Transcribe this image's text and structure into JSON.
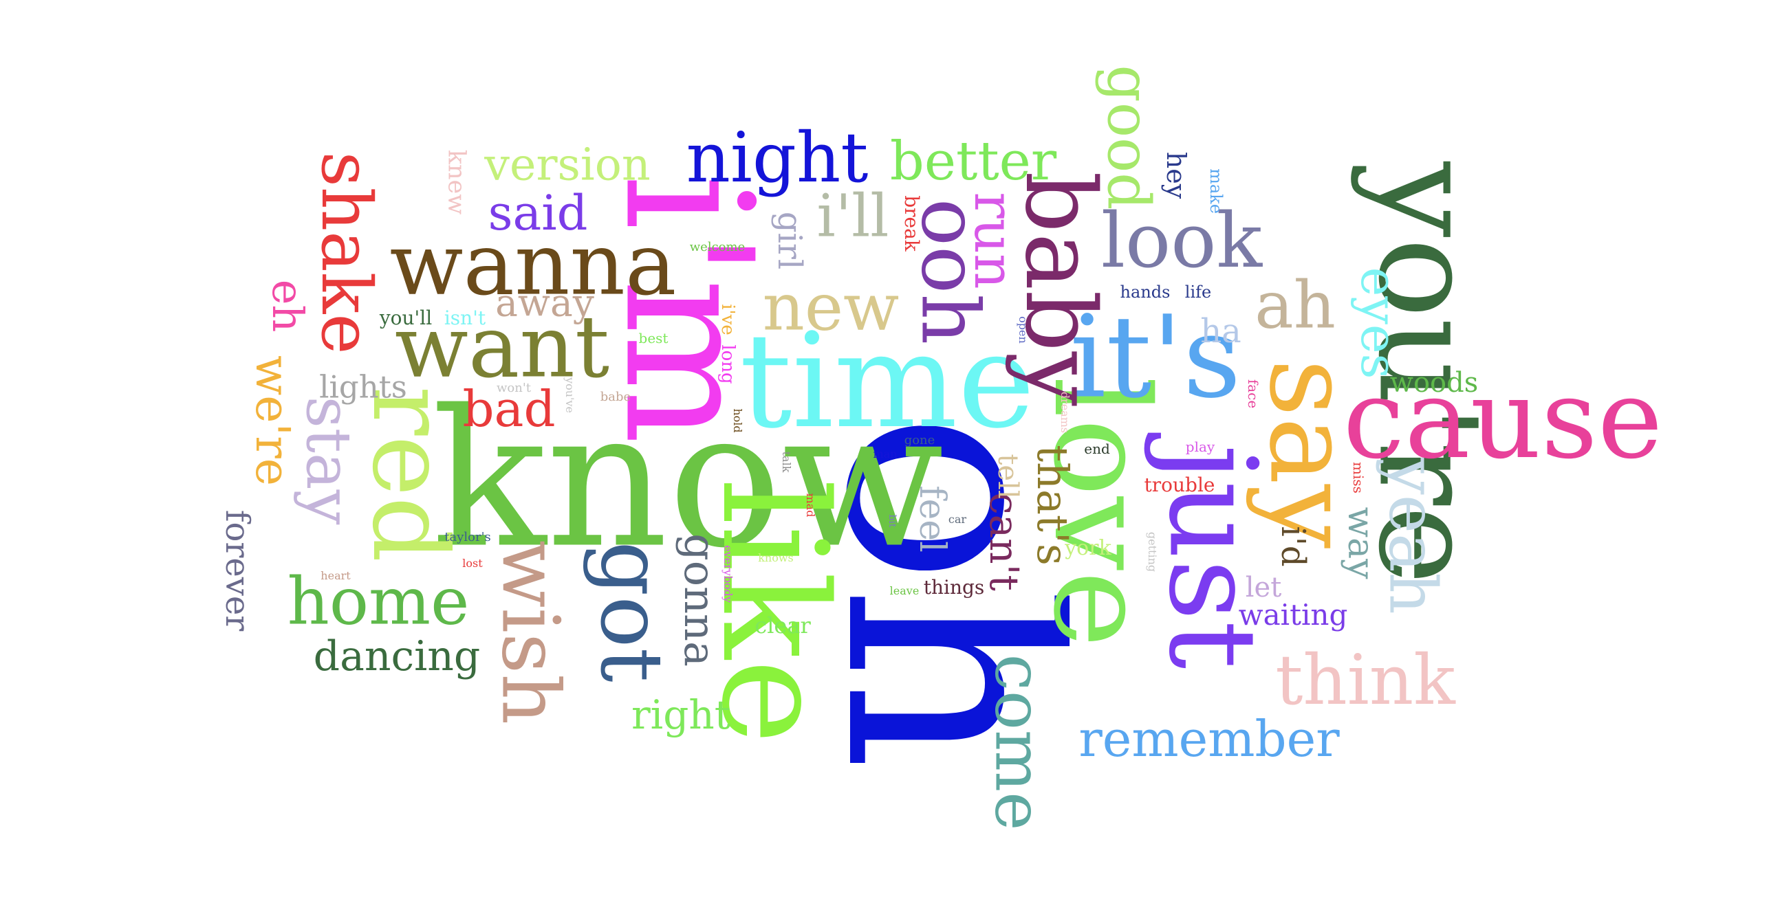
{
  "word_cloud": {
    "words": [
      {
        "text": "you're",
        "color": "#3A6B3E"
      },
      {
        "text": "oh",
        "color": "#0A14D8"
      },
      {
        "text": "know",
        "color": "#6BC444"
      },
      {
        "text": "i'm",
        "color": "#F23CF0"
      },
      {
        "text": "like",
        "color": "#8AF23C"
      },
      {
        "text": "love",
        "color": "#7FE85A"
      },
      {
        "text": "time",
        "color": "#6CF7F4"
      },
      {
        "text": "just",
        "color": "#7B3CF0"
      },
      {
        "text": "cause",
        "color": "#E8419A"
      },
      {
        "text": "say",
        "color": "#F2B23A"
      },
      {
        "text": "it's",
        "color": "#58A6F0"
      },
      {
        "text": "baby",
        "color": "#7B2A6A"
      },
      {
        "text": "red",
        "color": "#C4EE6A"
      },
      {
        "text": "want",
        "color": "#7B8033"
      },
      {
        "text": "wanna",
        "color": "#6A4A1A"
      },
      {
        "text": "got",
        "color": "#3A5E8C"
      },
      {
        "text": "wish",
        "color": "#C49A88"
      },
      {
        "text": "night",
        "color": "#1414D8"
      },
      {
        "text": "look",
        "color": "#7A7AA6"
      },
      {
        "text": "ooh",
        "color": "#7A3CA8"
      },
      {
        "text": "home",
        "color": "#5EB84A"
      },
      {
        "text": "come",
        "color": "#5EA8A0"
      },
      {
        "text": "think",
        "color": "#F2C4C4"
      },
      {
        "text": "yeah",
        "color": "#C4DAE8"
      },
      {
        "text": "new",
        "color": "#D8C88C"
      },
      {
        "text": "stay",
        "color": "#C4B4DA"
      },
      {
        "text": "shake",
        "color": "#E83A3A"
      },
      {
        "text": "good",
        "color": "#A6E86A"
      },
      {
        "text": "ah",
        "color": "#C4B49A"
      },
      {
        "text": "remember",
        "color": "#58A6F0"
      },
      {
        "text": "better",
        "color": "#7EE85A"
      },
      {
        "text": "eyes",
        "color": "#7EF4F4"
      },
      {
        "text": "i'll",
        "color": "#B4BCA6"
      },
      {
        "text": "version",
        "color": "#C4F07A"
      },
      {
        "text": "said",
        "color": "#7A3CE8"
      },
      {
        "text": "run",
        "color": "#D858E8"
      },
      {
        "text": "dancing",
        "color": "#3A6B3E"
      },
      {
        "text": "gonna",
        "color": "#5E6A7A"
      },
      {
        "text": "bad",
        "color": "#E83A3A"
      },
      {
        "text": "we're",
        "color": "#F2B23A"
      },
      {
        "text": "eh",
        "color": "#F24AA6"
      },
      {
        "text": "right",
        "color": "#7EE85A"
      },
      {
        "text": "away",
        "color": "#C4A694"
      },
      {
        "text": "that's",
        "color": "#8C7A2A"
      },
      {
        "text": "can't",
        "color": "#7A2A5E"
      },
      {
        "text": "forever",
        "color": "#6A6A8C"
      },
      {
        "text": "feel",
        "color": "#A6B4C4"
      },
      {
        "text": "lights",
        "color": "#A6A6A6"
      },
      {
        "text": "way",
        "color": "#7AA6A6"
      },
      {
        "text": "waiting",
        "color": "#7A3CE8"
      },
      {
        "text": "girl",
        "color": "#A6A6C4"
      },
      {
        "text": "woods",
        "color": "#5EB84A"
      },
      {
        "text": "i'd",
        "color": "#5E4A2A"
      },
      {
        "text": "ha",
        "color": "#B4C8E8"
      },
      {
        "text": "let",
        "color": "#C4A6DA"
      },
      {
        "text": "tell",
        "color": "#D8C49A"
      },
      {
        "text": "hey",
        "color": "#2A3A8C"
      },
      {
        "text": "knew",
        "color": "#F2C4C4"
      },
      {
        "text": "clear",
        "color": "#7EE85A"
      },
      {
        "text": "york",
        "color": "#C4F07A"
      },
      {
        "text": "things",
        "color": "#5E2A3A"
      },
      {
        "text": "trouble",
        "color": "#E83A3A"
      },
      {
        "text": "you'll",
        "color": "#3A6B3E"
      },
      {
        "text": "isn't",
        "color": "#7EF4F4"
      },
      {
        "text": "i've",
        "color": "#F2B23A"
      },
      {
        "text": "long",
        "color": "#F23CF0"
      },
      {
        "text": "break",
        "color": "#E83A3A"
      },
      {
        "text": "hands",
        "color": "#2A3A8C"
      },
      {
        "text": "life",
        "color": "#2A3A8C"
      },
      {
        "text": "make",
        "color": "#58A6F0"
      },
      {
        "text": "open",
        "color": "#5E6AC4"
      },
      {
        "text": "face",
        "color": "#E8419A"
      },
      {
        "text": "miss",
        "color": "#E83A3A"
      },
      {
        "text": "best",
        "color": "#7EE85A"
      },
      {
        "text": "welcome",
        "color": "#6BC444"
      },
      {
        "text": "won't",
        "color": "#C4C4C4"
      },
      {
        "text": "you've",
        "color": "#C4C4C4"
      },
      {
        "text": "babe",
        "color": "#C4A694"
      },
      {
        "text": "hold",
        "color": "#6A4A1A"
      },
      {
        "text": "dreams",
        "color": "#F2C4C4"
      },
      {
        "text": "play",
        "color": "#D858E8"
      },
      {
        "text": "end",
        "color": "#2A3A2A"
      },
      {
        "text": "gone",
        "color": "#3A5E8C"
      },
      {
        "text": "man",
        "color": "#1414D8"
      },
      {
        "text": "talk",
        "color": "#8C8C8C"
      },
      {
        "text": "mad",
        "color": "#E83A3A"
      },
      {
        "text": "bit",
        "color": "#7A7AC4"
      },
      {
        "text": "car",
        "color": "#5E6A7A"
      },
      {
        "text": "taylor's",
        "color": "#3A5E8C"
      },
      {
        "text": "lost",
        "color": "#E83A3A"
      },
      {
        "text": "heart",
        "color": "#C49A88"
      },
      {
        "text": "everybody",
        "color": "#D858E8"
      },
      {
        "text": "knows",
        "color": "#C4F07A"
      },
      {
        "text": "leave",
        "color": "#6BC444"
      },
      {
        "text": "getting",
        "color": "#C4C4C4"
      }
    ]
  }
}
